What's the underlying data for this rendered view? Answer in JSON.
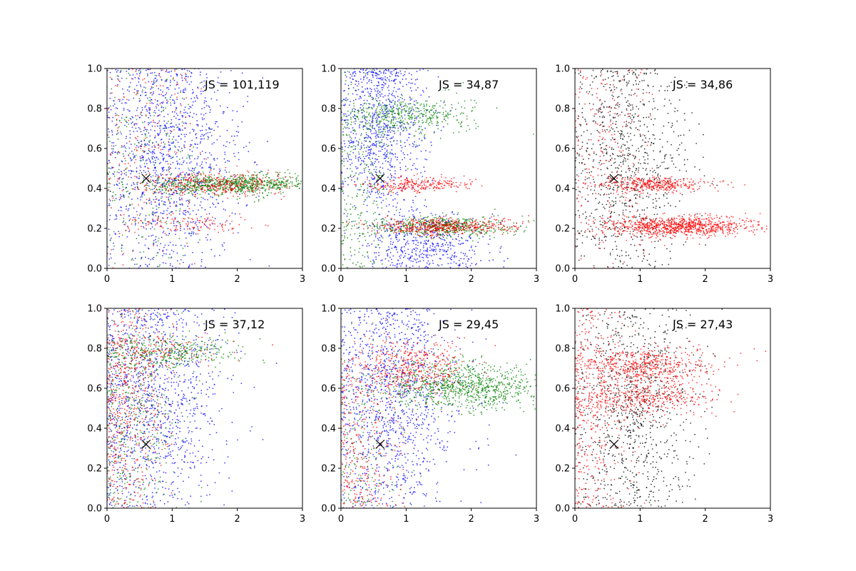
{
  "colors": {
    "blue": "#0000ff",
    "green": "#008000",
    "red": "#ff0000",
    "black": "#000000"
  },
  "chart_data": [
    {
      "type": "scatter",
      "xlim": [
        0,
        3
      ],
      "ylim": [
        0,
        1
      ],
      "xticks": [
        "0",
        "1",
        "2",
        "3"
      ],
      "yticks": [
        "0.0",
        "0.2",
        "0.4",
        "0.6",
        "0.8",
        "1.0"
      ],
      "annotation": "JS = 101,119",
      "marker": {
        "symbol": "x",
        "x": 0.6,
        "y": 0.45
      },
      "series": [
        {
          "color": "blue",
          "clusters": [
            {
              "cx": 0.9,
              "cy": 0.55,
              "sx": 0.55,
              "sy": 0.3,
              "n": 1300
            }
          ]
        },
        {
          "color": "green",
          "clusters": [
            {
              "cx": 1.9,
              "cy": 0.42,
              "sx": 0.65,
              "sy": 0.025,
              "n": 850
            },
            {
              "cx": 0.6,
              "cy": 0.5,
              "sx": 0.4,
              "sy": 0.28,
              "n": 250
            }
          ]
        },
        {
          "color": "red",
          "clusters": [
            {
              "cx": 1.7,
              "cy": 0.42,
              "sx": 0.6,
              "sy": 0.03,
              "n": 380
            },
            {
              "cx": 1.3,
              "cy": 0.22,
              "sx": 0.5,
              "sy": 0.02,
              "n": 120
            },
            {
              "cx": 0.6,
              "cy": 0.6,
              "sx": 0.4,
              "sy": 0.3,
              "n": 200
            }
          ]
        }
      ]
    },
    {
      "type": "scatter",
      "xlim": [
        0,
        3
      ],
      "ylim": [
        0,
        1
      ],
      "xticks": [
        "0",
        "1",
        "2",
        "3"
      ],
      "yticks": [
        "0.0",
        "0.2",
        "0.4",
        "0.6",
        "0.8",
        "1.0"
      ],
      "annotation": "JS = 34,87",
      "marker": {
        "symbol": "x",
        "x": 0.6,
        "y": 0.45
      },
      "series": [
        {
          "color": "blue",
          "clusters": [
            {
              "cx": 0.6,
              "cy": 0.7,
              "sx": 0.35,
              "sy": 0.22,
              "n": 900
            },
            {
              "cx": 1.3,
              "cy": 0.12,
              "sx": 0.45,
              "sy": 0.08,
              "n": 500
            }
          ]
        },
        {
          "color": "green",
          "clusters": [
            {
              "cx": 1.6,
              "cy": 0.21,
              "sx": 0.55,
              "sy": 0.025,
              "n": 550
            },
            {
              "cx": 1.0,
              "cy": 0.76,
              "sx": 0.5,
              "sy": 0.05,
              "n": 450
            },
            {
              "cx": 0.3,
              "cy": 0.4,
              "sx": 0.25,
              "sy": 0.25,
              "n": 250
            }
          ]
        },
        {
          "color": "red",
          "clusters": [
            {
              "cx": 1.6,
              "cy": 0.21,
              "sx": 0.55,
              "sy": 0.02,
              "n": 500
            },
            {
              "cx": 1.2,
              "cy": 0.42,
              "sx": 0.4,
              "sy": 0.02,
              "n": 260
            }
          ]
        }
      ]
    },
    {
      "type": "scatter",
      "xlim": [
        0,
        3
      ],
      "ylim": [
        0,
        1
      ],
      "xticks": [
        "0",
        "1",
        "2",
        "3"
      ],
      "yticks": [
        "0.0",
        "0.2",
        "0.4",
        "0.6",
        "0.8",
        "1.0"
      ],
      "annotation": "JS = 34,86",
      "marker": {
        "symbol": "x",
        "x": 0.6,
        "y": 0.45
      },
      "series": [
        {
          "color": "black",
          "clusters": [
            {
              "cx": 0.8,
              "cy": 0.55,
              "sx": 0.45,
              "sy": 0.3,
              "n": 900
            }
          ]
        },
        {
          "color": "red",
          "clusters": [
            {
              "cx": 1.6,
              "cy": 0.21,
              "sx": 0.55,
              "sy": 0.025,
              "n": 900
            },
            {
              "cx": 1.2,
              "cy": 0.42,
              "sx": 0.45,
              "sy": 0.02,
              "n": 380
            },
            {
              "cx": 0.5,
              "cy": 0.6,
              "sx": 0.35,
              "sy": 0.3,
              "n": 220
            }
          ]
        }
      ]
    },
    {
      "type": "scatter",
      "xlim": [
        0,
        3
      ],
      "ylim": [
        0,
        1
      ],
      "xticks": [
        "0",
        "1",
        "2",
        "3"
      ],
      "yticks": [
        "0.0",
        "0.2",
        "0.4",
        "0.6",
        "0.8",
        "1.0"
      ],
      "annotation": "JS = 37,12",
      "marker": {
        "symbol": "x",
        "x": 0.6,
        "y": 0.32
      },
      "series": [
        {
          "color": "blue",
          "clusters": [
            {
              "cx": 0.7,
              "cy": 0.55,
              "sx": 0.55,
              "sy": 0.3,
              "n": 1200
            }
          ]
        },
        {
          "color": "green",
          "clusters": [
            {
              "cx": 0.9,
              "cy": 0.78,
              "sx": 0.55,
              "sy": 0.04,
              "n": 350
            },
            {
              "cx": 0.4,
              "cy": 0.45,
              "sx": 0.35,
              "sy": 0.28,
              "n": 400
            }
          ]
        },
        {
          "color": "red",
          "clusters": [
            {
              "cx": 0.3,
              "cy": 0.5,
              "sx": 0.3,
              "sy": 0.3,
              "n": 500
            },
            {
              "cx": 0.8,
              "cy": 0.78,
              "sx": 0.5,
              "sy": 0.05,
              "n": 150
            }
          ]
        }
      ]
    },
    {
      "type": "scatter",
      "xlim": [
        0,
        3
      ],
      "ylim": [
        0,
        1
      ],
      "xticks": [
        "0",
        "1",
        "2",
        "3"
      ],
      "yticks": [
        "0.0",
        "0.2",
        "0.4",
        "0.6",
        "0.8",
        "1.0"
      ],
      "annotation": "JS = 29,45",
      "marker": {
        "symbol": "x",
        "x": 0.6,
        "y": 0.32
      },
      "series": [
        {
          "color": "blue",
          "clusters": [
            {
              "cx": 0.8,
              "cy": 0.55,
              "sx": 0.5,
              "sy": 0.3,
              "n": 1200
            }
          ]
        },
        {
          "color": "green",
          "clusters": [
            {
              "cx": 1.9,
              "cy": 0.61,
              "sx": 0.6,
              "sy": 0.06,
              "n": 900
            },
            {
              "cx": 0.4,
              "cy": 0.3,
              "sx": 0.3,
              "sy": 0.25,
              "n": 150
            }
          ]
        },
        {
          "color": "red",
          "clusters": [
            {
              "cx": 1.1,
              "cy": 0.7,
              "sx": 0.45,
              "sy": 0.07,
              "n": 450
            },
            {
              "cx": 0.3,
              "cy": 0.3,
              "sx": 0.3,
              "sy": 0.25,
              "n": 300
            }
          ]
        }
      ]
    },
    {
      "type": "scatter",
      "xlim": [
        0,
        3
      ],
      "ylim": [
        0,
        1
      ],
      "xticks": [
        "0",
        "1",
        "2",
        "3"
      ],
      "yticks": [
        "0.0",
        "0.2",
        "0.4",
        "0.6",
        "0.8",
        "1.0"
      ],
      "annotation": "JS = 27,43",
      "marker": {
        "symbol": "x",
        "x": 0.6,
        "y": 0.32
      },
      "series": [
        {
          "color": "black",
          "clusters": [
            {
              "cx": 0.9,
              "cy": 0.5,
              "sx": 0.45,
              "sy": 0.3,
              "n": 900
            }
          ]
        },
        {
          "color": "red",
          "clusters": [
            {
              "cx": 1.1,
              "cy": 0.71,
              "sx": 0.5,
              "sy": 0.05,
              "n": 550
            },
            {
              "cx": 1.1,
              "cy": 0.55,
              "sx": 0.5,
              "sy": 0.04,
              "n": 380
            },
            {
              "cx": 0.3,
              "cy": 0.5,
              "sx": 0.3,
              "sy": 0.3,
              "n": 400
            }
          ]
        }
      ]
    }
  ]
}
